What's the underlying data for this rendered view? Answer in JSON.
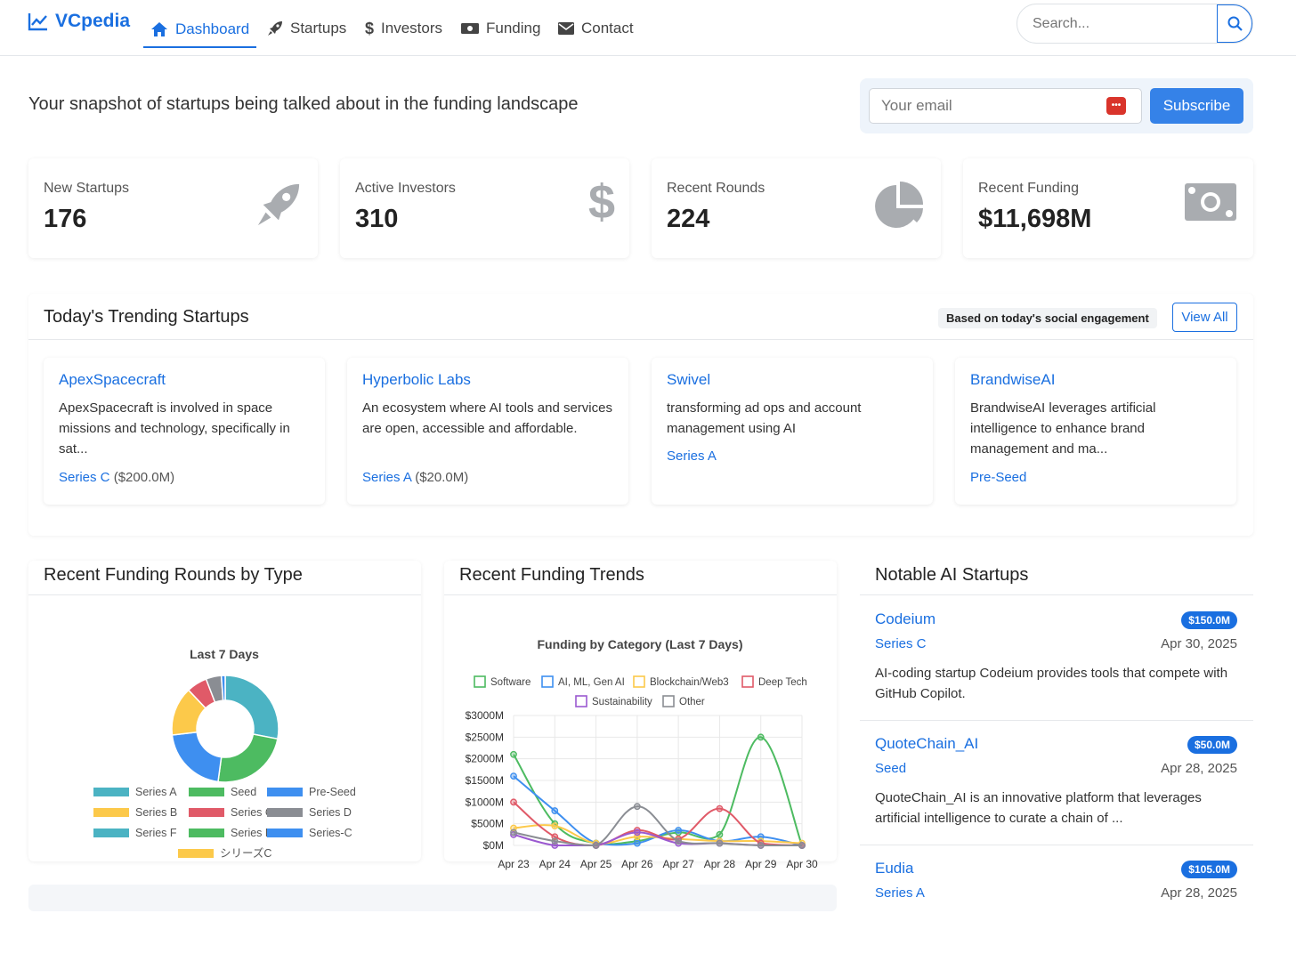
{
  "nav": {
    "brand": "VCpedia",
    "links": [
      {
        "label": "Dashboard",
        "icon": "home-icon"
      },
      {
        "label": "Startups",
        "icon": "rocket-icon"
      },
      {
        "label": "Investors",
        "icon": "dollar-icon"
      },
      {
        "label": "Funding",
        "icon": "money-icon"
      },
      {
        "label": "Contact",
        "icon": "envelope-icon"
      }
    ],
    "search_placeholder": "Search..."
  },
  "tagline": "Your snapshot of startups being talked about in the funding landscape",
  "subscribe": {
    "email_placeholder": "Your email",
    "button": "Subscribe"
  },
  "stats": [
    {
      "label": "New Startups",
      "value": "176",
      "icon": "rocket-icon"
    },
    {
      "label": "Active Investors",
      "value": "310",
      "icon": "dollar-icon"
    },
    {
      "label": "Recent Rounds",
      "value": "224",
      "icon": "pie-chart-icon"
    },
    {
      "label": "Recent Funding",
      "value": "$11,698M",
      "icon": "money-bill-icon"
    }
  ],
  "trending": {
    "title": "Today's Trending Startups",
    "basis": "Based on today's social engagement",
    "view_all": "View All",
    "cards": [
      {
        "name": "ApexSpacecraft",
        "desc": "ApexSpacecraft is involved in space missions and technology, specifically in sat...",
        "series": "Series C",
        "amount": "($200.0M)"
      },
      {
        "name": "Hyperbolic Labs",
        "desc": "An ecosystem where AI tools and services are open, accessible and affordable.",
        "series": "Series A",
        "amount": "($20.0M)"
      },
      {
        "name": "Swivel",
        "desc": "transforming ad ops and account management using AI",
        "series": "Series A",
        "amount": ""
      },
      {
        "name": "BrandwiseAI",
        "desc": "BrandwiseAI leverages artificial intelligence to enhance brand management and ma...",
        "series": "Pre-Seed",
        "amount": ""
      }
    ]
  },
  "rounds_panel": {
    "title": "Recent Funding Rounds by Type"
  },
  "trends_panel": {
    "title": "Recent Funding Trends"
  },
  "chart_data": [
    {
      "type": "pie",
      "title": "Last 7 Days",
      "legend_position": "bottom",
      "labels": [
        "Series A",
        "Seed",
        "Pre-Seed",
        "Series B",
        "Series C",
        "Series D",
        "Series F",
        "Series E",
        "Series-C",
        "シリーズC"
      ],
      "values": [
        72,
        62,
        54,
        38,
        16,
        12,
        0,
        0,
        3,
        0
      ],
      "colors": [
        "#4bb3c3",
        "#4dbb61",
        "#3e8ff0",
        "#fcc94a",
        "#e05a68",
        "#8a8d93",
        "#4bb3c3",
        "#4dbb61",
        "#3e8ff0",
        "#fcc94a"
      ]
    },
    {
      "type": "line",
      "title": "Funding by Category (Last 7 Days)",
      "legend_position": "top",
      "x": [
        "Apr 23",
        "Apr 24",
        "Apr 25",
        "Apr 26",
        "Apr 27",
        "Apr 28",
        "Apr 29",
        "Apr 30"
      ],
      "yticks": [
        "$0M",
        "$500M",
        "$1000M",
        "$1500M",
        "$2000M",
        "$2500M",
        "$3000M"
      ],
      "ylim": [
        0,
        3000
      ],
      "series": [
        {
          "name": "Software",
          "color": "#4dbb61",
          "values": [
            2100,
            500,
            50,
            100,
            300,
            250,
            2500,
            0
          ]
        },
        {
          "name": "AI, ML, Gen AI",
          "color": "#3e8ff0",
          "values": [
            1600,
            800,
            50,
            50,
            350,
            100,
            200,
            0
          ]
        },
        {
          "name": "Blockchain/Web3",
          "color": "#fcc94a",
          "values": [
            400,
            450,
            50,
            200,
            150,
            100,
            100,
            50
          ]
        },
        {
          "name": "Deep Tech",
          "color": "#e05a68",
          "values": [
            1000,
            200,
            0,
            350,
            150,
            850,
            50,
            0
          ]
        },
        {
          "name": "Sustainability",
          "color": "#9b59d0",
          "values": [
            250,
            0,
            0,
            300,
            50,
            50,
            0,
            0
          ]
        },
        {
          "name": "Other",
          "color": "#8a8d93",
          "values": [
            300,
            100,
            0,
            900,
            100,
            50,
            0,
            0
          ]
        }
      ]
    }
  ],
  "ai": {
    "title": "Notable AI Startups",
    "items": [
      {
        "name": "Codeium",
        "amount": "$150.0M",
        "round": "Series C",
        "date": "Apr 30, 2025",
        "desc": "AI-coding startup Codeium provides tools that compete with GitHub Copilot."
      },
      {
        "name": "QuoteChain_AI",
        "amount": "$50.0M",
        "round": "Seed",
        "date": "Apr 28, 2025",
        "desc": "QuoteChain_AI is an innovative platform that leverages artificial intelligence to curate a chain of ..."
      },
      {
        "name": "Eudia",
        "amount": "$105.0M",
        "round": "Series A",
        "date": "Apr 28, 2025",
        "desc": ""
      }
    ]
  }
}
